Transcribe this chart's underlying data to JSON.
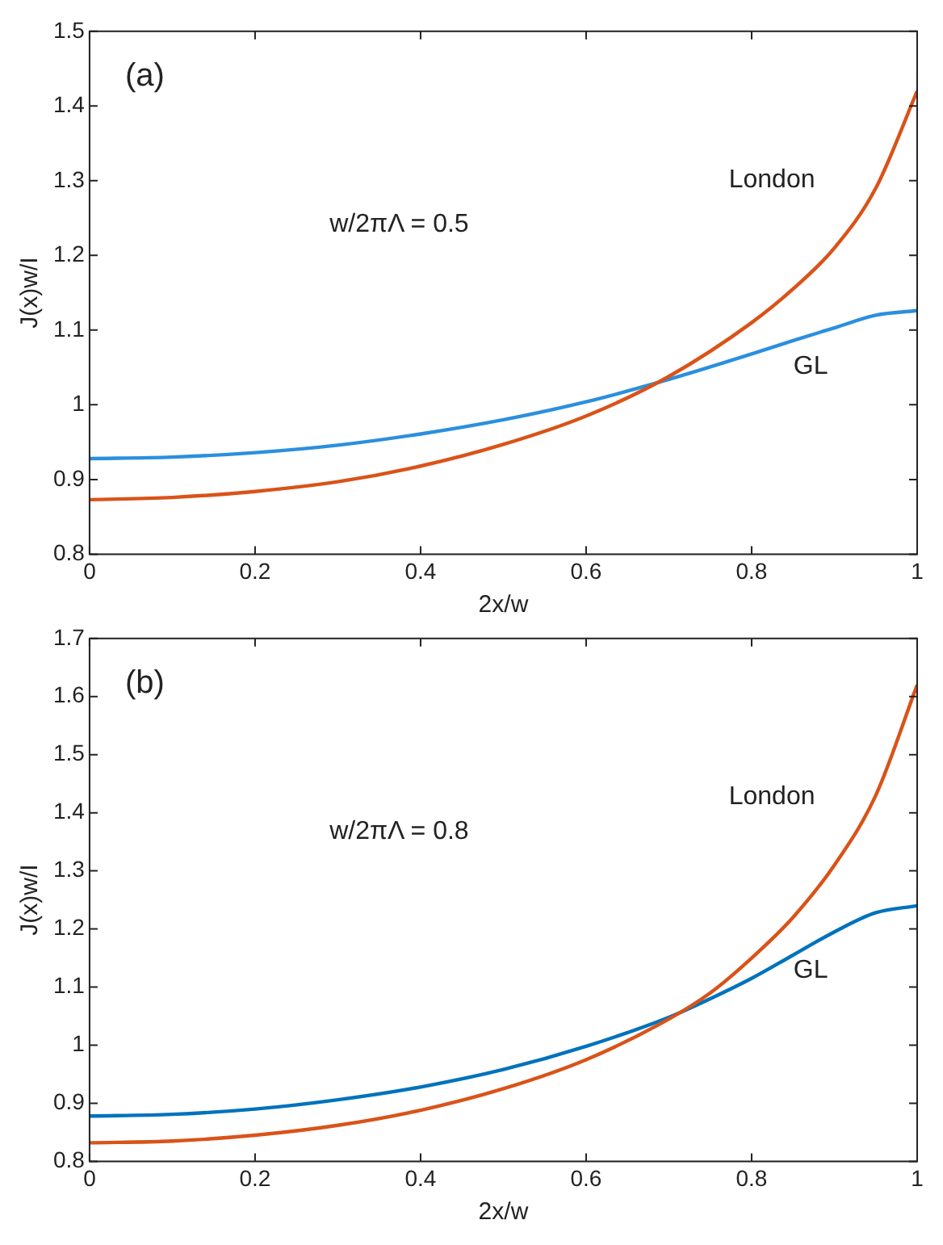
{
  "chart_data": [
    {
      "type": "line",
      "xlabel": "2x/w",
      "ylabel": "J(x)w/I",
      "annotations": [
        "(a)",
        "w/2πΛ = 0.5"
      ],
      "xlim": [
        0,
        1
      ],
      "xticks": [
        0,
        0.2,
        0.4,
        0.6,
        0.8,
        1
      ],
      "ylim": [
        0.8,
        1.5
      ],
      "yticks": [
        0.8,
        0.9,
        1,
        1.1,
        1.2,
        1.3,
        1.4,
        1.5
      ],
      "grid": false,
      "legend": false,
      "marker": "none",
      "line_style": "solid",
      "x": [
        0,
        0.1,
        0.2,
        0.3,
        0.4,
        0.5,
        0.6,
        0.7,
        0.8,
        0.85,
        0.9,
        0.95,
        1
      ],
      "series": [
        {
          "name": "London",
          "color": "#d95319",
          "values": [
            0.873,
            0.876,
            0.884,
            0.897,
            0.918,
            0.947,
            0.985,
            1.038,
            1.11,
            1.155,
            1.21,
            1.29,
            1.42
          ]
        },
        {
          "name": "GL",
          "color": "#2b8fde",
          "values": [
            0.928,
            0.93,
            0.936,
            0.946,
            0.961,
            0.98,
            1.004,
            1.034,
            1.068,
            1.086,
            1.103,
            1.12,
            1.126
          ]
        }
      ]
    },
    {
      "type": "line",
      "xlabel": "2x/w",
      "ylabel": "J(x)w/I",
      "annotations": [
        "(b)",
        "w/2πΛ = 0.8"
      ],
      "xlim": [
        0,
        1
      ],
      "xticks": [
        0,
        0.2,
        0.4,
        0.6,
        0.8,
        1
      ],
      "ylim": [
        0.8,
        1.7
      ],
      "yticks": [
        0.8,
        0.9,
        1,
        1.1,
        1.2,
        1.3,
        1.4,
        1.5,
        1.6,
        1.7
      ],
      "grid": false,
      "legend": false,
      "marker": "none",
      "line_style": "solid",
      "x": [
        0,
        0.1,
        0.2,
        0.3,
        0.4,
        0.5,
        0.6,
        0.7,
        0.75,
        0.8,
        0.85,
        0.9,
        0.95,
        1
      ],
      "series": [
        {
          "name": "London",
          "color": "#d95319",
          "values": [
            0.832,
            0.835,
            0.845,
            0.862,
            0.888,
            0.925,
            0.975,
            1.045,
            1.09,
            1.15,
            1.22,
            1.31,
            1.43,
            1.62
          ]
        },
        {
          "name": "GL",
          "color": "#0072bd",
          "values": [
            0.878,
            0.881,
            0.89,
            0.906,
            0.928,
            0.958,
            0.998,
            1.048,
            1.08,
            1.115,
            1.155,
            1.195,
            1.228,
            1.24
          ]
        }
      ]
    }
  ]
}
